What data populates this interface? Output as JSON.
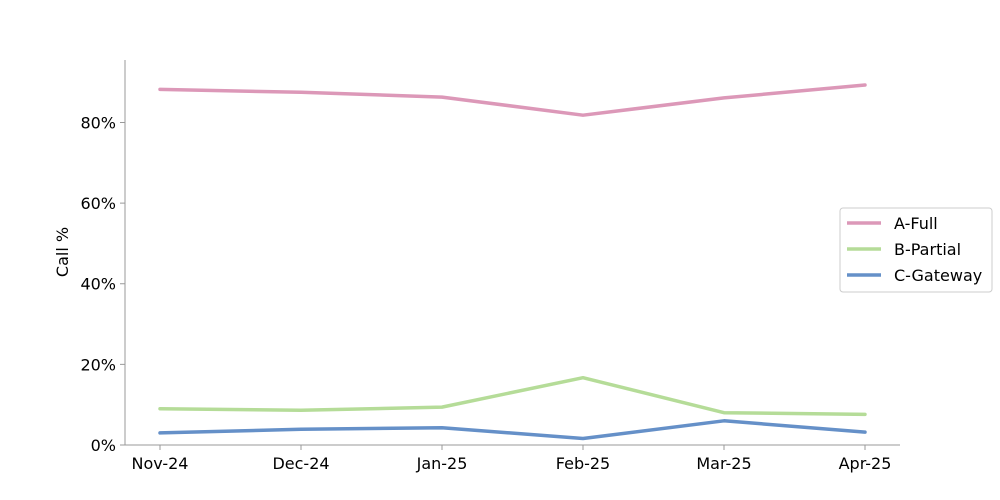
{
  "chart_data": {
    "type": "line",
    "title": "",
    "xlabel": "",
    "ylabel": "Call %",
    "categories": [
      "Nov-24",
      "Dec-24",
      "Jan-25",
      "Feb-25",
      "Mar-25",
      "Apr-25"
    ],
    "ylim": [
      0,
      95.5
    ],
    "yticks": [
      0,
      20,
      40,
      60,
      80
    ],
    "ytick_labels": [
      "0%",
      "20%",
      "40%",
      "60%",
      "80%"
    ],
    "grid": false,
    "legend_position": "right",
    "series": [
      {
        "name": "A-Full",
        "color": "#dc98b8",
        "values": [
          88.2,
          87.5,
          86.3,
          81.8,
          86.1,
          89.3
        ]
      },
      {
        "name": "B-Partial",
        "color": "#b5dc98",
        "values": [
          9.0,
          8.6,
          9.4,
          16.7,
          8.0,
          7.6
        ]
      },
      {
        "name": "C-Gateway",
        "color": "#6590c8",
        "values": [
          3.0,
          3.9,
          4.3,
          1.6,
          6.0,
          3.2
        ]
      }
    ]
  }
}
